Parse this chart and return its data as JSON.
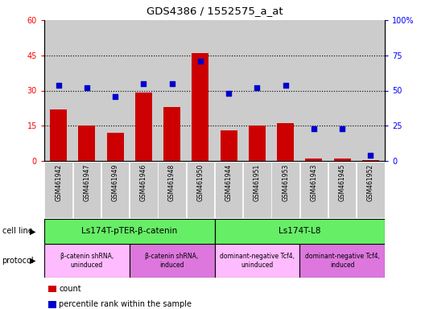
{
  "title": "GDS4386 / 1552575_a_at",
  "samples": [
    "GSM461942",
    "GSM461947",
    "GSM461949",
    "GSM461946",
    "GSM461948",
    "GSM461950",
    "GSM461944",
    "GSM461951",
    "GSM461953",
    "GSM461943",
    "GSM461945",
    "GSM461952"
  ],
  "counts": [
    22,
    15,
    12,
    29,
    23,
    46,
    13,
    15,
    16,
    1,
    1,
    0.5
  ],
  "percentiles": [
    54,
    52,
    46,
    55,
    55,
    71,
    48,
    52,
    54,
    23,
    23,
    4
  ],
  "ylim_left": [
    0,
    60
  ],
  "ylim_right": [
    0,
    100
  ],
  "yticks_left": [
    0,
    15,
    30,
    45,
    60
  ],
  "yticks_right": [
    0,
    25,
    50,
    75,
    100
  ],
  "bar_color": "#cc0000",
  "dot_color": "#0000cc",
  "cell_line_groups": [
    {
      "label": "Ls174T-pTER-β-catenin",
      "start": 0,
      "end": 6,
      "color": "#66ee66"
    },
    {
      "label": "Ls174T-L8",
      "start": 6,
      "end": 12,
      "color": "#66ee66"
    }
  ],
  "protocol_groups": [
    {
      "label": "β-catenin shRNA,\nuninduced",
      "start": 0,
      "end": 3,
      "color": "#ffbbff"
    },
    {
      "label": "β-catenin shRNA,\ninduced",
      "start": 3,
      "end": 6,
      "color": "#dd77dd"
    },
    {
      "label": "dominant-negative Tcf4,\nuninduced",
      "start": 6,
      "end": 9,
      "color": "#ffbbff"
    },
    {
      "label": "dominant-negative Tcf4,\ninduced",
      "start": 9,
      "end": 12,
      "color": "#dd77dd"
    }
  ],
  "bg_color": "#ffffff",
  "tick_bg": "#cccccc",
  "cell_line_label": "cell line",
  "protocol_label": "protocol",
  "legend_count": "count",
  "legend_percentile": "percentile rank within the sample"
}
